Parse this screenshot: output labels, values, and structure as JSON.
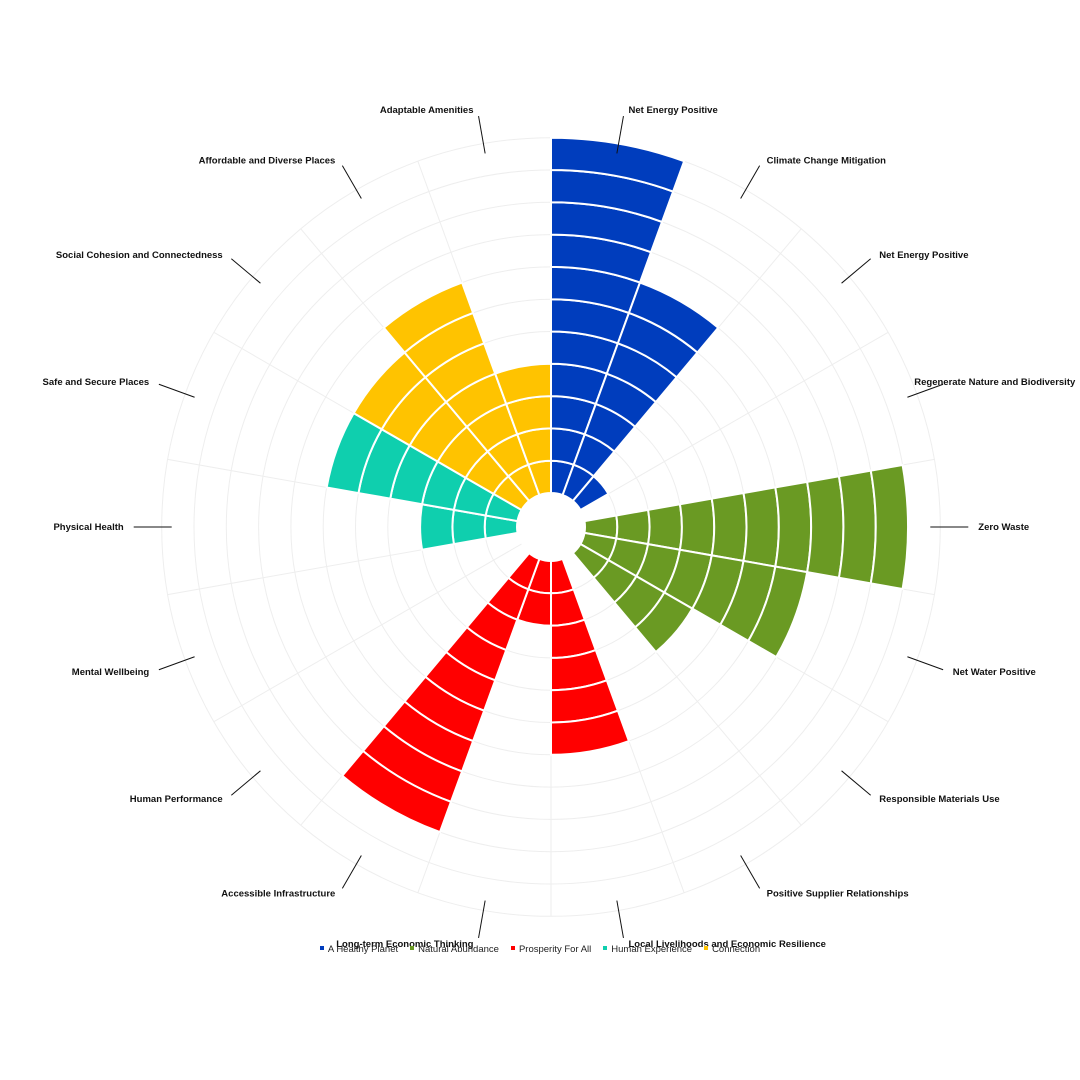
{
  "chart_data": {
    "type": "polar-area",
    "rmax": 11,
    "categories": [
      {
        "label": "Net Energy Positive",
        "value": 11,
        "series": "A Healthy Planet"
      },
      {
        "label": "Climate Change Mitigation",
        "value": 7,
        "series": "A Healthy Planet"
      },
      {
        "label": "Net Energy Positive",
        "value": 1,
        "series": "A Healthy Planet"
      },
      {
        "label": "Regenerate Nature and Biodiversity",
        "value": 0,
        "series": "A Healthy Planet"
      },
      {
        "label": "Zero Waste",
        "value": 10,
        "series": "Natural Abundance"
      },
      {
        "label": "Net Water Positive",
        "value": 7,
        "series": "Natural Abundance"
      },
      {
        "label": "Responsible Materials Use",
        "value": 4,
        "series": "Natural Abundance"
      },
      {
        "label": "Positive Supplier Relationships",
        "value": 0,
        "series": "Prosperity For All"
      },
      {
        "label": "Local Livelihoods and Economic Resilience",
        "value": 6,
        "series": "Prosperity For All"
      },
      {
        "label": "Long-term Economic Thinking",
        "value": 2,
        "series": "Prosperity For All"
      },
      {
        "label": "Accessible Infrastructure",
        "value": 9,
        "series": "Prosperity For All"
      },
      {
        "label": "Human Performance",
        "value": 0,
        "series": "Human Experience"
      },
      {
        "label": "Mental Wellbeing",
        "value": 0,
        "series": "Human Experience"
      },
      {
        "label": "Physical Health",
        "value": 3,
        "series": "Human Experience"
      },
      {
        "label": "Safe and Secure Places",
        "value": 6,
        "series": "Human Experience"
      },
      {
        "label": "Social Cohesion and Connectedness",
        "value": 6,
        "series": "Connection"
      },
      {
        "label": "Affordable and Diverse Places",
        "value": 7,
        "series": "Connection"
      },
      {
        "label": "Adaptable Amenities",
        "value": 4,
        "series": "Connection"
      }
    ],
    "series": [
      {
        "name": "A Healthy Planet",
        "color": "#003dbd"
      },
      {
        "name": "Natural Abundance",
        "color": "#6a9a23"
      },
      {
        "name": "Prosperity For All",
        "color": "#ff0000"
      },
      {
        "name": "Human Experience",
        "color": "#0fcfae"
      },
      {
        "name": "Connection",
        "color": "#ffc300"
      }
    ],
    "legend_position": "bottom",
    "grid": true
  }
}
